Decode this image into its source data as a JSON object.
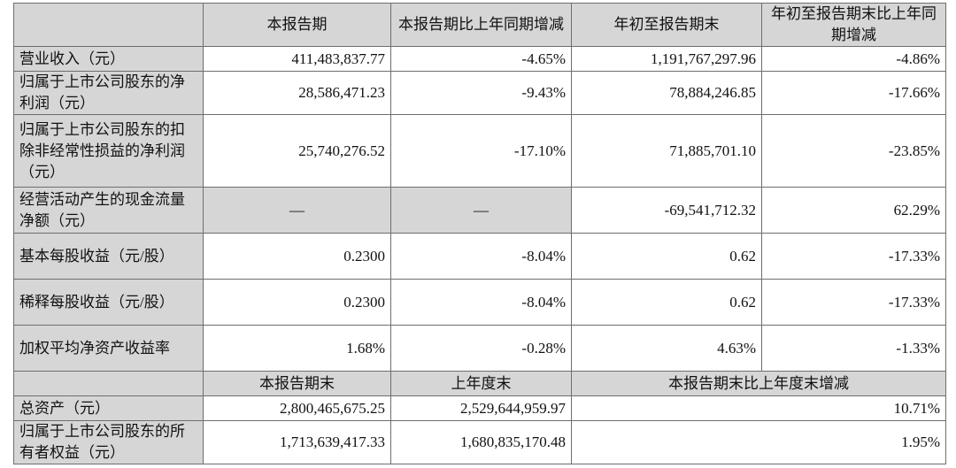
{
  "header": {
    "blank": "",
    "col1": "本报告期",
    "col2": "本报告期比上年同期增减",
    "col3": "年初至报告期末",
    "col4": "年初至报告期末比上年同期增减"
  },
  "rows": [
    {
      "label": "营业收入（元）",
      "v1": "411,483,837.77",
      "v2": "-4.65%",
      "v3": "1,191,767,297.96",
      "v4": "-4.86%"
    },
    {
      "label": "归属于上市公司股东的净利润（元）",
      "v1": "28,586,471.23",
      "v2": "-9.43%",
      "v3": "78,884,246.85",
      "v4": "-17.66%"
    },
    {
      "label": "归属于上市公司股东的扣除非经常性损益的净利润（元）",
      "v1": "25,740,276.52",
      "v2": "-17.10%",
      "v3": "71,885,701.10",
      "v4": "-23.85%"
    },
    {
      "label": "经营活动产生的现金流量净额（元）",
      "v1": "—",
      "v2": "—",
      "v3": "-69,541,712.32",
      "v4": "62.29%"
    },
    {
      "label": "基本每股收益（元/股）",
      "v1": "0.2300",
      "v2": "-8.04%",
      "v3": "0.62",
      "v4": "-17.33%"
    },
    {
      "label": "稀释每股收益（元/股）",
      "v1": "0.2300",
      "v2": "-8.04%",
      "v3": "0.62",
      "v4": "-17.33%"
    },
    {
      "label": "加权平均净资产收益率",
      "v1": "1.68%",
      "v2": "-0.28%",
      "v3": "4.63%",
      "v4": "-1.33%"
    }
  ],
  "header2": {
    "col1": "本报告期末",
    "col2": "上年度末",
    "col3": "本报告期末比上年度末增减"
  },
  "rows2": [
    {
      "label": "总资产（元）",
      "v1": "2,800,465,675.25",
      "v2": "2,529,644,959.97",
      "v3": "10.71%"
    },
    {
      "label": "归属于上市公司股东的所有者权益（元）",
      "v1": "1,713,639,417.33",
      "v2": "1,680,835,170.48",
      "v3": "1.95%"
    }
  ],
  "colors": {
    "header_bg": "#d6d6d6",
    "border": "#6e6e6e"
  }
}
